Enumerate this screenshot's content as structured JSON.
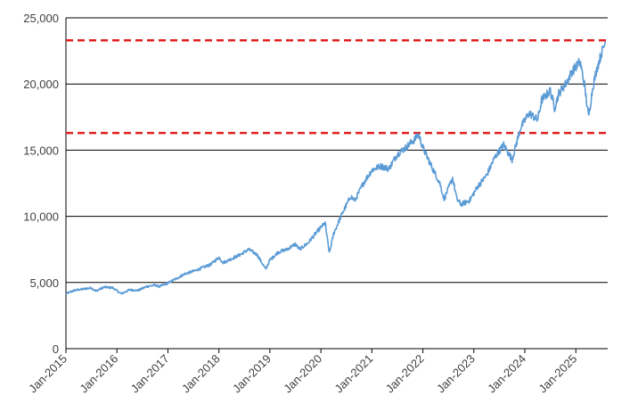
{
  "chart_data": {
    "type": "line",
    "title": "",
    "xlabel": "",
    "ylabel": "",
    "ylim": [
      0,
      25000
    ],
    "y_ticks": [
      "0",
      "5,000",
      "10,000",
      "15,000",
      "20,000",
      "25,000"
    ],
    "x_ticks": [
      "Jan-2015",
      "Jan-2016",
      "Jan-2017",
      "Jan-2018",
      "Jan-2019",
      "Jan-2020",
      "Jan-2021",
      "Jan-2022",
      "Jan-2023",
      "Jan-2024",
      "Jan-2025"
    ],
    "x_range": [
      "2015-01",
      "2025-08"
    ],
    "grid": "horizontal",
    "colors": {
      "series": "#5b9bd5",
      "reference": "#e02020",
      "grid": "#000000"
    },
    "series": [
      {
        "x": [
          "2015-01",
          "2015-03",
          "2015-05",
          "2015-07",
          "2015-08",
          "2015-10",
          "2015-12",
          "2016-02",
          "2016-04",
          "2016-06",
          "2016-08",
          "2016-10",
          "2016-11",
          "2017-01",
          "2017-03",
          "2017-05",
          "2017-07",
          "2017-09",
          "2017-11",
          "2018-01",
          "2018-02",
          "2018-04",
          "2018-06",
          "2018-08",
          "2018-10",
          "2018-12",
          "2019-01",
          "2019-03",
          "2019-05",
          "2019-07",
          "2019-08",
          "2019-10",
          "2019-12",
          "2020-02",
          "2020-03",
          "2020-04",
          "2020-06",
          "2020-08",
          "2020-09",
          "2020-11",
          "2021-01",
          "2021-03",
          "2021-05",
          "2021-07",
          "2021-09",
          "2021-11",
          "2021-12",
          "2022-01",
          "2022-03",
          "2022-05",
          "2022-06",
          "2022-08",
          "2022-09",
          "2022-10",
          "2022-12",
          "2023-02",
          "2023-04",
          "2023-06",
          "2023-08",
          "2023-10",
          "2023-12",
          "2024-02",
          "2024-04",
          "2024-05",
          "2024-07",
          "2024-08",
          "2024-09",
          "2024-11",
          "2024-12",
          "2025-02",
          "2025-03",
          "2025-04",
          "2025-05",
          "2025-06",
          "2025-07",
          "2025-08"
        ],
        "values": [
          4150,
          4400,
          4500,
          4600,
          4350,
          4650,
          4600,
          4150,
          4450,
          4400,
          4700,
          4800,
          4700,
          4950,
          5300,
          5650,
          5850,
          6100,
          6350,
          6900,
          6500,
          6800,
          7100,
          7500,
          7100,
          6000,
          6700,
          7300,
          7500,
          7900,
          7500,
          8000,
          8800,
          9500,
          7200,
          8700,
          10200,
          11500,
          11200,
          12500,
          13500,
          13800,
          13600,
          14700,
          15200,
          15800,
          16200,
          15200,
          13800,
          12500,
          11300,
          12900,
          11300,
          10900,
          11200,
          12300,
          13100,
          14500,
          15400,
          14300,
          16700,
          17800,
          17300,
          18800,
          19500,
          18200,
          19300,
          20200,
          20900,
          21700,
          20000,
          17500,
          19800,
          21200,
          22300,
          23200
        ]
      }
    ],
    "reference_lines": [
      16300,
      23300
    ]
  }
}
